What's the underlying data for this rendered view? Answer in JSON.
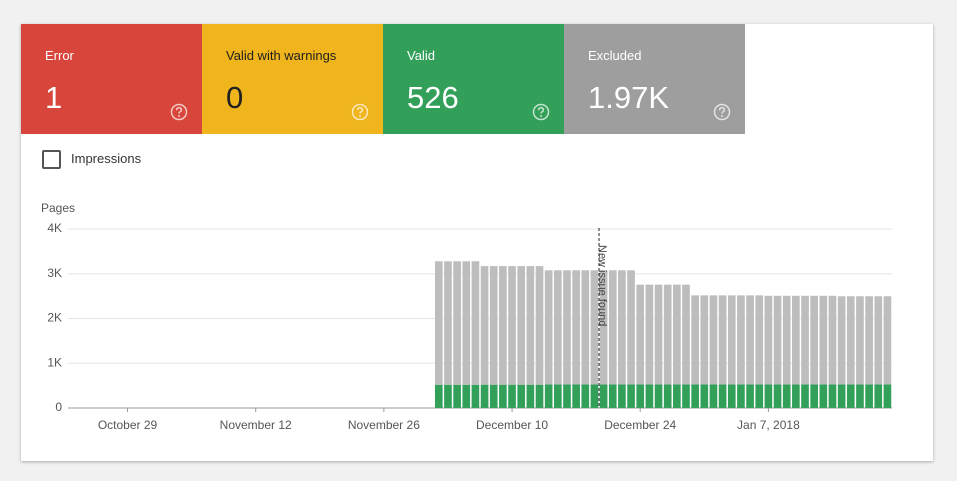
{
  "summary": [
    {
      "label": "Error",
      "value": 1,
      "color": "#d8463b"
    },
    {
      "label": "Valid with warnings",
      "value": 0,
      "color": "#f0b41c"
    },
    {
      "label": "Valid",
      "value": 526,
      "color": "#33a05a"
    },
    {
      "label": "Excluded",
      "value": 1970,
      "value_label": "1.97K",
      "color": "#9e9e9e"
    }
  ],
  "filter": {
    "label": "Impressions"
  },
  "chart_data": {
    "type": "bar",
    "stacked": true,
    "y_label": "Pages",
    "ylim": [
      0,
      4000
    ],
    "yticks": [
      0,
      {
        "value": 1000,
        "label": "1K"
      },
      {
        "value": 2000,
        "label": "2K"
      },
      {
        "value": 3000,
        "label": "3K"
      },
      {
        "value": 4000,
        "label": "4K"
      }
    ],
    "grid": true,
    "categories": [
      null,
      null,
      null,
      null,
      null,
      null,
      "October 29",
      null,
      null,
      null,
      null,
      null,
      null,
      null,
      null,
      null,
      null,
      null,
      null,
      null,
      "November 12",
      null,
      null,
      null,
      null,
      null,
      null,
      null,
      null,
      null,
      null,
      null,
      null,
      null,
      "November 26",
      null,
      null,
      null,
      null,
      null,
      null,
      null,
      null,
      null,
      null,
      null,
      null,
      null,
      "December 10",
      null,
      null,
      null,
      null,
      null,
      null,
      null,
      null,
      null,
      null,
      null,
      null,
      null,
      "December 24",
      null,
      null,
      null,
      null,
      null,
      null,
      null,
      null,
      null,
      null,
      null,
      null,
      null,
      "Jan 7, 2018",
      null,
      null,
      null,
      null,
      null,
      null,
      null,
      null,
      null,
      null,
      null,
      null,
      null
    ],
    "series": [
      {
        "color": "#db4437",
        "values": [
          null,
          null,
          null,
          null,
          null,
          null,
          null,
          null,
          null,
          null,
          null,
          null,
          null,
          null,
          null,
          null,
          null,
          null,
          null,
          null,
          null,
          null,
          null,
          null,
          null,
          null,
          null,
          null,
          null,
          null,
          null,
          null,
          null,
          null,
          null,
          null,
          null,
          null,
          null,
          null,
          1,
          1,
          1,
          1,
          1,
          1,
          1,
          1,
          1,
          1,
          1,
          1,
          1,
          1,
          1,
          1,
          1,
          1,
          1,
          1,
          1,
          1,
          1,
          1,
          1,
          1,
          1,
          1,
          1,
          1,
          1,
          1,
          1,
          1,
          1,
          1,
          1,
          1,
          1,
          1,
          1,
          1,
          1,
          1,
          1,
          1,
          1,
          1,
          1,
          1
        ]
      },
      {
        "color": "#f4b400",
        "values": [
          null,
          null,
          null,
          null,
          null,
          null,
          null,
          null,
          null,
          null,
          null,
          null,
          null,
          null,
          null,
          null,
          null,
          null,
          null,
          null,
          null,
          null,
          null,
          null,
          null,
          null,
          null,
          null,
          null,
          null,
          null,
          null,
          null,
          null,
          null,
          null,
          null,
          null,
          null,
          null,
          0,
          0,
          0,
          0,
          0,
          0,
          0,
          0,
          0,
          0,
          0,
          0,
          0,
          0,
          0,
          0,
          0,
          0,
          0,
          0,
          0,
          0,
          0,
          0,
          0,
          0,
          0,
          0,
          0,
          0,
          0,
          0,
          0,
          0,
          0,
          0,
          0,
          0,
          0,
          0,
          0,
          0,
          0,
          0,
          0,
          0,
          0,
          0,
          0,
          0
        ]
      },
      {
        "color": "#33a05a",
        "values": [
          null,
          null,
          null,
          null,
          null,
          null,
          null,
          null,
          null,
          null,
          null,
          null,
          null,
          null,
          null,
          null,
          null,
          null,
          null,
          null,
          null,
          null,
          null,
          null,
          null,
          null,
          null,
          null,
          null,
          null,
          null,
          null,
          null,
          null,
          null,
          null,
          null,
          null,
          null,
          null,
          518,
          518,
          518,
          518,
          518,
          520,
          520,
          520,
          520,
          520,
          520,
          520,
          526,
          526,
          526,
          526,
          526,
          526,
          526,
          526,
          526,
          526,
          526,
          526,
          526,
          526,
          526,
          526,
          526,
          526,
          526,
          526,
          526,
          526,
          526,
          526,
          526,
          526,
          526,
          526,
          526,
          526,
          526,
          526,
          526,
          526,
          526,
          526,
          526,
          526
        ]
      },
      {
        "color": "#bdbdbd",
        "values": [
          null,
          null,
          null,
          null,
          null,
          null,
          null,
          null,
          null,
          null,
          null,
          null,
          null,
          null,
          null,
          null,
          null,
          null,
          null,
          null,
          null,
          null,
          null,
          null,
          null,
          null,
          null,
          null,
          null,
          null,
          null,
          null,
          null,
          null,
          null,
          null,
          null,
          null,
          null,
          null,
          2760,
          2760,
          2760,
          2760,
          2760,
          2650,
          2650,
          2650,
          2650,
          2650,
          2650,
          2650,
          2550,
          2550,
          2550,
          2550,
          2550,
          2550,
          2550,
          2550,
          2550,
          2550,
          2230,
          2230,
          2230,
          2230,
          2230,
          2230,
          1990,
          1990,
          1990,
          1990,
          1990,
          1990,
          1990,
          1990,
          1980,
          1980,
          1980,
          1980,
          1980,
          1980,
          1980,
          1980,
          1970,
          1970,
          1970,
          1970,
          1970,
          1970
        ]
      }
    ],
    "annotation": {
      "text": "New issue found",
      "at": 58
    }
  }
}
